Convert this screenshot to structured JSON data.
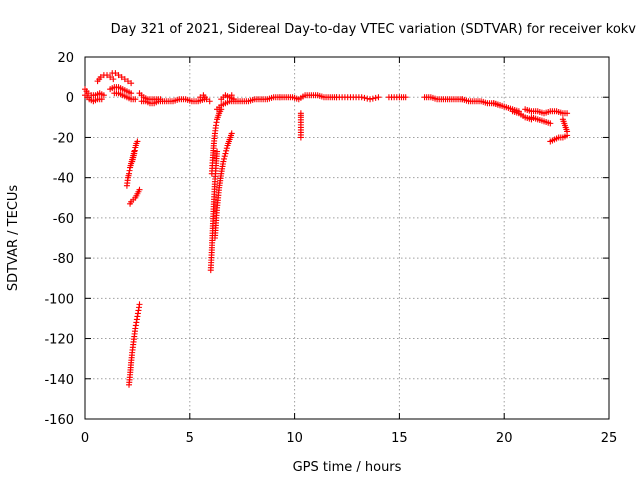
{
  "chart_data": {
    "type": "scatter",
    "title": "Day 321 of 2021, Sidereal Day-to-day VTEC variation (SDTVAR) for receiver kokv",
    "xlabel": "GPS time / hours",
    "ylabel": "SDTVAR / TECUs",
    "xlim": [
      0,
      25
    ],
    "ylim": [
      -160,
      20
    ],
    "xticks": [
      0,
      5,
      10,
      15,
      20,
      25
    ],
    "yticks": [
      20,
      0,
      -20,
      -40,
      -60,
      -80,
      -100,
      -120,
      -140,
      -160
    ],
    "grid": true,
    "marker": "+",
    "color": "#ff0000",
    "segments": [
      {
        "x": [
          0.0,
          0.15,
          0.3,
          0.5,
          0.7,
          0.9
        ],
        "y": [
          4,
          2,
          1,
          1,
          2,
          1
        ]
      },
      {
        "x": [
          0.0,
          0.2,
          0.4,
          0.6,
          0.8
        ],
        "y": [
          1,
          -1,
          -2,
          -1,
          -1
        ]
      },
      {
        "x": [
          0.6,
          0.75,
          0.9,
          1.05,
          1.2,
          1.35
        ],
        "y": [
          8,
          10,
          11,
          11,
          10,
          9
        ]
      },
      {
        "x": [
          1.3,
          1.45,
          1.6,
          1.75,
          1.9,
          2.05,
          2.2
        ],
        "y": [
          12,
          12,
          11,
          10,
          9,
          8,
          7
        ]
      },
      {
        "x": [
          1.2,
          1.4,
          1.6,
          1.8,
          2.0,
          2.2
        ],
        "y": [
          4,
          5,
          5,
          4,
          3,
          2
        ]
      },
      {
        "x": [
          1.4,
          1.6,
          1.8,
          2.0,
          2.2,
          2.4
        ],
        "y": [
          2,
          2,
          1,
          0,
          -1,
          -1
        ]
      },
      {
        "x": [
          2.0,
          2.05,
          2.1,
          2.15,
          2.2,
          2.25,
          2.3,
          2.35
        ],
        "y": [
          -44,
          -40,
          -38,
          -35,
          -33,
          -31,
          -29,
          -27
        ]
      },
      {
        "x": [
          2.25,
          2.3,
          2.35,
          2.4,
          2.45,
          2.5
        ],
        "y": [
          -32,
          -30,
          -28,
          -25,
          -23,
          -22
        ]
      },
      {
        "x": [
          2.15,
          2.2,
          2.3,
          2.4,
          2.5,
          2.6
        ],
        "y": [
          -53,
          -52,
          -51,
          -50,
          -48,
          -46
        ]
      },
      {
        "x": [
          2.1,
          2.15,
          2.2,
          2.25,
          2.3,
          2.35,
          2.4,
          2.45,
          2.5,
          2.55,
          2.6
        ],
        "y": [
          -143,
          -138,
          -132,
          -127,
          -123,
          -119,
          -115,
          -112,
          -109,
          -106,
          -103
        ]
      },
      {
        "x": [
          2.6,
          2.8,
          3.0,
          3.2,
          3.4,
          3.6
        ],
        "y": [
          2,
          0,
          -1,
          -1,
          -1,
          -1
        ]
      },
      {
        "x": [
          2.7,
          2.9,
          3.1,
          3.3,
          3.5,
          3.7
        ],
        "y": [
          -2,
          -2,
          -3,
          -3,
          -2,
          -2
        ]
      },
      {
        "x": [
          3.8,
          4.0,
          4.2,
          4.5,
          4.8,
          5.1,
          5.4,
          5.7
        ],
        "y": [
          -2,
          -2,
          -2,
          -1,
          -1,
          -2,
          -2,
          -1
        ]
      },
      {
        "x": [
          5.5,
          5.65,
          5.8,
          5.95
        ],
        "y": [
          0,
          1,
          -1,
          -2
        ]
      },
      {
        "x": [
          6.0,
          6.05,
          6.1,
          6.15,
          6.2,
          6.25,
          6.3
        ],
        "y": [
          -86,
          -76,
          -64,
          -52,
          -42,
          -34,
          -27
        ]
      },
      {
        "x": [
          6.05,
          6.1,
          6.15,
          6.2,
          6.25,
          6.3,
          6.4,
          6.5
        ],
        "y": [
          -38,
          -30,
          -23,
          -18,
          -14,
          -11,
          -8,
          -6
        ]
      },
      {
        "x": [
          6.2,
          6.3,
          6.4,
          6.5,
          6.6,
          6.7,
          6.8,
          6.9,
          7.0
        ],
        "y": [
          -70,
          -55,
          -45,
          -38,
          -32,
          -28,
          -24,
          -21,
          -18
        ]
      },
      {
        "x": [
          6.3,
          6.5,
          6.7,
          6.9,
          7.1
        ],
        "y": [
          -6,
          -4,
          -3,
          -2,
          -2
        ]
      },
      {
        "x": [
          6.5,
          6.7,
          6.9,
          7.1
        ],
        "y": [
          -1,
          1,
          0,
          -1
        ]
      },
      {
        "x": [
          7.2,
          7.5,
          7.8,
          8.1,
          8.4,
          8.7,
          9.0,
          9.3
        ],
        "y": [
          -2,
          -2,
          -2,
          -1,
          -1,
          -1,
          0,
          0
        ]
      },
      {
        "x": [
          7.0
        ],
        "y": [
          1
        ]
      },
      {
        "x": [
          9.3,
          9.6,
          9.9,
          10.2,
          10.5,
          10.8,
          11.1,
          11.4,
          11.7,
          12.0
        ],
        "y": [
          0,
          0,
          0,
          -1,
          1,
          1,
          1,
          0,
          0,
          0
        ]
      },
      {
        "x": [
          10.3,
          10.3,
          10.3
        ],
        "y": [
          -8,
          -10,
          -20
        ]
      },
      {
        "x": [
          12.0,
          12.4,
          12.8,
          13.2,
          13.6,
          14.0
        ],
        "y": [
          0,
          0,
          0,
          0,
          -1,
          0
        ]
      },
      {
        "x": [
          14.5,
          15.0,
          15.3
        ],
        "y": [
          0,
          0,
          0
        ]
      },
      {
        "x": [
          16.2,
          16.5,
          16.8,
          17.1,
          17.4,
          17.7,
          18.0
        ],
        "y": [
          0,
          0,
          -1,
          -1,
          -1,
          -1,
          -1
        ]
      },
      {
        "x": [
          18.0,
          18.3,
          18.6,
          18.9,
          19.2,
          19.5,
          19.8
        ],
        "y": [
          -1,
          -2,
          -2,
          -2,
          -3,
          -3,
          -4
        ]
      },
      {
        "x": [
          19.5,
          19.8,
          20.1,
          20.4,
          20.7
        ],
        "y": [
          -3,
          -4,
          -5,
          -6,
          -7
        ]
      },
      {
        "x": [
          20.4,
          20.7,
          21.0,
          21.3
        ],
        "y": [
          -7,
          -8,
          -10,
          -11
        ]
      },
      {
        "x": [
          21.3,
          21.6,
          21.9,
          22.2
        ],
        "y": [
          -10,
          -11,
          -12,
          -13
        ]
      },
      {
        "x": [
          21.0,
          21.3,
          21.6,
          21.9,
          22.2,
          22.5,
          22.8,
          23.0
        ],
        "y": [
          -6,
          -7,
          -7,
          -8,
          -7,
          -7,
          -8,
          -8
        ]
      },
      {
        "x": [
          22.2,
          22.4,
          22.6,
          22.8,
          23.0
        ],
        "y": [
          -22,
          -21,
          -20,
          -20,
          -19
        ]
      },
      {
        "x": [
          22.8,
          22.9,
          23.0
        ],
        "y": [
          -11,
          -14,
          -17
        ]
      }
    ]
  }
}
